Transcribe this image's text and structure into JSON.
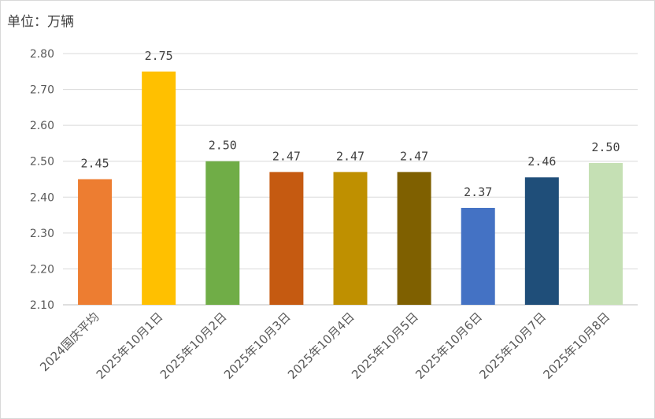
{
  "chart_data": {
    "type": "bar",
    "unit_label": "单位：万辆",
    "title": "",
    "xlabel": "",
    "ylabel": "",
    "ylim": [
      2.1,
      2.8
    ],
    "yticks": [
      "2.10",
      "2.20",
      "2.30",
      "2.40",
      "2.50",
      "2.60",
      "2.70",
      "2.80"
    ],
    "grid": true,
    "legend": "none",
    "categories": [
      "2024国庆平均",
      "2025年10月1日",
      "2025年10月2日",
      "2025年10月3日",
      "2025年10月4日",
      "2025年10月5日",
      "2025年10月6日",
      "2025年10月7日",
      "2025年10月8日"
    ],
    "values": [
      2.45,
      2.75,
      2.5,
      2.47,
      2.47,
      2.47,
      2.37,
      2.455,
      2.495
    ],
    "data_labels": [
      "2.45",
      "2.75",
      "2.50",
      "2.47",
      "2.47",
      "2.47",
      "2.37",
      "2.46",
      "2.50"
    ],
    "colors": [
      "#ED7D31",
      "#FFC000",
      "#70AD47",
      "#C55A11",
      "#BF9000",
      "#7F6000",
      "#4472C4",
      "#1F4E79",
      "#C5E0B4"
    ]
  }
}
